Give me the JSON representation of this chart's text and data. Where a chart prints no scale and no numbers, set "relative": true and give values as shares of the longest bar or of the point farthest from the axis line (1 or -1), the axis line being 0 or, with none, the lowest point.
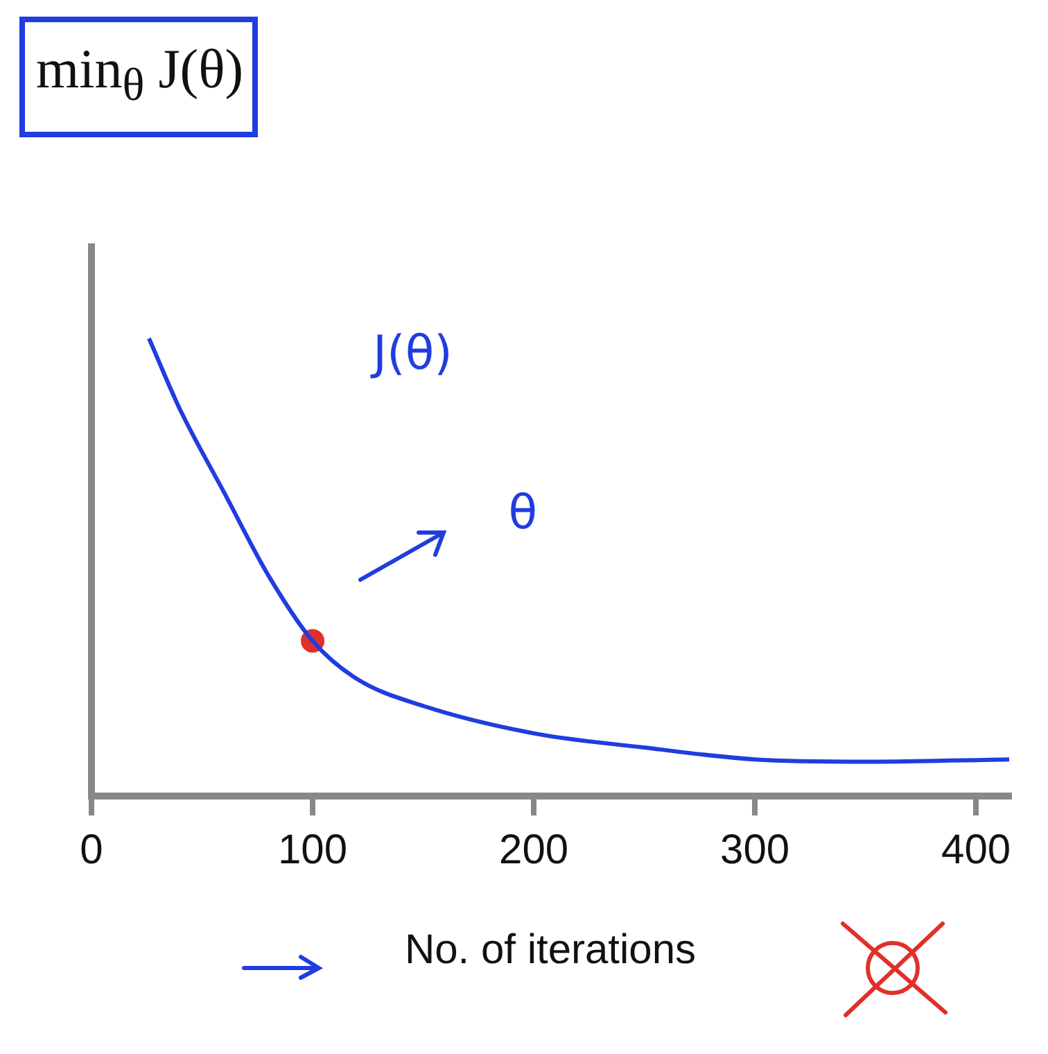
{
  "chart_data": {
    "type": "line",
    "title": "min$_{θ}$ J(θ)",
    "xlabel": "No. of iterations",
    "relative": true,
    "xlim": [
      0,
      415
    ],
    "xticks": [
      0,
      100,
      200,
      300,
      400
    ],
    "grid": false,
    "legend": false,
    "annotations": [
      "J(θ)",
      "θ"
    ],
    "series": [
      {
        "color": "#1f3de0",
        "marker": "none",
        "x": [
          26,
          40,
          60,
          80,
          100,
          120,
          150,
          200,
          250,
          300,
          350,
          415
        ],
        "values": [
          1.0,
          0.845,
          0.663,
          0.482,
          0.339,
          0.256,
          0.197,
          0.137,
          0.106,
          0.08,
          0.075,
          0.08
        ]
      },
      {
        "type": "scatter",
        "color": "#e0302a",
        "marker": "circle",
        "x": [
          100
        ],
        "values": [
          0.339
        ]
      }
    ]
  }
}
